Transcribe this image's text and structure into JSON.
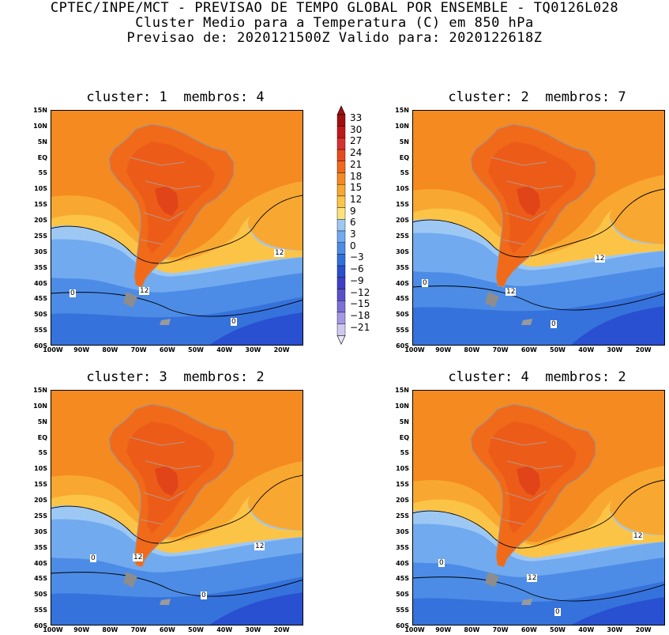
{
  "header": {
    "line1": "CPTEC/INPE/MCT - PREVISAO DE TEMPO GLOBAL POR ENSEMBLE - TQ0126L028",
    "line2": "Cluster Medio para a Temperatura (C) em 850 hPa",
    "line3": "Previsao de: 2020121500Z   Valido para: 2020122618Z"
  },
  "panels": [
    {
      "title": "cluster: 1  membros: 4",
      "contour_labels": [
        "12",
        "12",
        "0",
        "0"
      ]
    },
    {
      "title": "cluster: 2  membros: 7",
      "contour_labels": [
        "12",
        "12",
        "0",
        "0"
      ]
    },
    {
      "title": "cluster: 3  membros: 2",
      "contour_labels": [
        "12",
        "12",
        "0",
        "0"
      ]
    },
    {
      "title": "cluster: 4  membros: 2",
      "contour_labels": [
        "12",
        "12",
        "0",
        "0"
      ]
    }
  ],
  "lat_labels": [
    "15N",
    "10N",
    "5N",
    "EQ",
    "5S",
    "10S",
    "15S",
    "20S",
    "25S",
    "30S",
    "35S",
    "40S",
    "45S",
    "50S",
    "55S",
    "60S"
  ],
  "lon_labels": [
    "100W",
    "90W",
    "80W",
    "70W",
    "60W",
    "50W",
    "40W",
    "30W",
    "20W"
  ],
  "colorbar": {
    "labels": [
      "33",
      "30",
      "27",
      "24",
      "21",
      "18",
      "15",
      "12",
      "9",
      "6",
      "3",
      "0",
      "-3",
      "-6",
      "-9",
      "-12",
      "-15",
      "-18",
      "-21"
    ],
    "colors": [
      "#a01010",
      "#c01818",
      "#d83030",
      "#e84a20",
      "#f06a1a",
      "#f58a20",
      "#f8a830",
      "#fcc446",
      "#fde27a",
      "#9ec8f4",
      "#72aaf0",
      "#4c8ce6",
      "#3070dc",
      "#2850d0",
      "#3e3ec8",
      "#5a50cc",
      "#7c70d8",
      "#a498e4",
      "#cfc8f0"
    ]
  }
}
